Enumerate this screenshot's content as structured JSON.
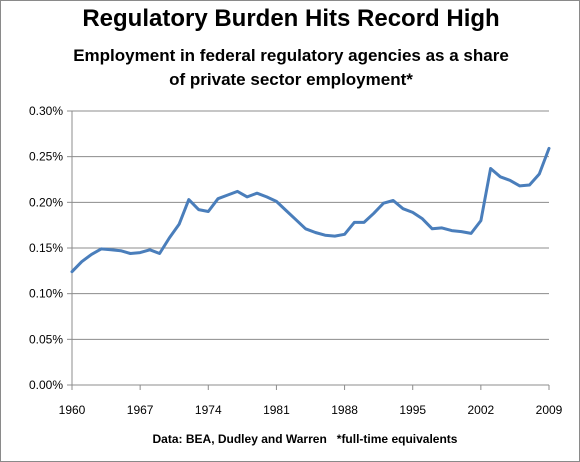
{
  "chart_data": {
    "type": "line",
    "title": "Regulatory Burden Hits Record High",
    "subtitle": [
      "Employment in federal regulatory agencies as a share",
      "of private sector employment*"
    ],
    "footnote": "Data: BEA, Dudley and Warren   *full-time equivalents",
    "xlabel": "",
    "ylabel": "",
    "ylim": [
      0,
      0.3
    ],
    "xlim": [
      1960,
      2009
    ],
    "y_ticks": [
      "0.00%",
      "0.05%",
      "0.10%",
      "0.15%",
      "0.20%",
      "0.25%",
      "0.30%"
    ],
    "x_ticks": [
      "1960",
      "1967",
      "1974",
      "1981",
      "1988",
      "1995",
      "2002",
      "2009"
    ],
    "grid": true,
    "legend": "none",
    "line_color": "#4a7ebb",
    "series": [
      {
        "x": [
          1960,
          1961,
          1962,
          1963,
          1964,
          1965,
          1966,
          1967,
          1968,
          1969,
          1970,
          1971,
          1972,
          1973,
          1974,
          1975,
          1976,
          1977,
          1978,
          1979,
          1980,
          1981,
          1982,
          1983,
          1984,
          1985,
          1986,
          1987,
          1988,
          1989,
          1990,
          1991,
          1992,
          1993,
          1994,
          1995,
          1996,
          1997,
          1998,
          1999,
          2000,
          2001,
          2002,
          2003,
          2004,
          2005,
          2006,
          2007,
          2008,
          2009
        ],
        "values": [
          0.124,
          0.135,
          0.143,
          0.149,
          0.148,
          0.147,
          0.144,
          0.145,
          0.148,
          0.144,
          0.161,
          0.176,
          0.203,
          0.192,
          0.19,
          0.204,
          0.208,
          0.212,
          0.206,
          0.21,
          0.206,
          0.201,
          0.191,
          0.181,
          0.171,
          0.167,
          0.164,
          0.163,
          0.165,
          0.178,
          0.178,
          0.188,
          0.199,
          0.202,
          0.193,
          0.189,
          0.182,
          0.171,
          0.172,
          0.169,
          0.168,
          0.166,
          0.18,
          0.237,
          0.228,
          0.224,
          0.218,
          0.219,
          0.231,
          0.259
        ]
      }
    ]
  }
}
